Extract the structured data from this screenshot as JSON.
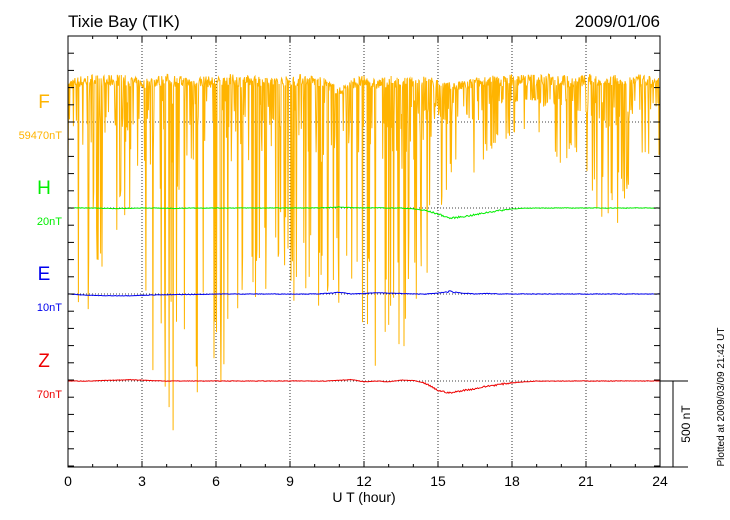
{
  "chart_data": {
    "type": "line",
    "title": "Tixie Bay (TIK)",
    "date": "2009/01/06",
    "xlabel": "U T (hour)",
    "xlim": [
      0,
      24
    ],
    "xticks": [
      "0",
      "3",
      "6",
      "9",
      "12",
      "15",
      "18",
      "21",
      "24"
    ],
    "scale_bar": "500 nT",
    "footer": "Plotted at 2009/03/09 21:42 UT",
    "x_step_hours": 0.5,
    "series": [
      {
        "name": "F",
        "baseline_label": "59470nT",
        "color": "#ffb400",
        "noisy": true,
        "upper": [
          250,
          270,
          280,
          270,
          280,
          270,
          250,
          270,
          280,
          270,
          260,
          270,
          260,
          280,
          270,
          270,
          280,
          260,
          270,
          280,
          270,
          250,
          200,
          260,
          270,
          250,
          270,
          260,
          260,
          270,
          250,
          230,
          240,
          260,
          270,
          270,
          280,
          280,
          280,
          280,
          280,
          260,
          280,
          270,
          280,
          270,
          280,
          270,
          260
        ],
        "lower": [
          -300,
          -1900,
          -800,
          -900,
          -700,
          -1000,
          -1700,
          -1800,
          -1900,
          -2000,
          -1900,
          -1500,
          -1800,
          -1400,
          -1300,
          -1200,
          -1000,
          -1000,
          -1100,
          -1200,
          -1200,
          -1300,
          -1100,
          -1000,
          -1300,
          -1600,
          -1200,
          -1400,
          -1200,
          -1000,
          -600,
          -400,
          -300,
          -500,
          -200,
          -100,
          -100,
          -50,
          -50,
          -300,
          -300,
          -200,
          -400,
          -600,
          -700,
          -500,
          -300,
          -200,
          -200
        ]
      },
      {
        "name": "H",
        "baseline_label": "20nT",
        "color": "#00ee00",
        "values": [
          0,
          0,
          0,
          -2,
          -3,
          -2,
          0,
          0,
          -2,
          -2,
          0,
          0,
          0,
          0,
          0,
          0,
          0,
          0,
          0,
          0,
          0,
          2,
          6,
          2,
          0,
          2,
          0,
          0,
          -5,
          -15,
          -35,
          -60,
          -50,
          -40,
          -25,
          -15,
          -5,
          -2,
          0,
          0,
          0,
          0,
          0,
          0,
          0,
          0,
          0,
          0,
          0
        ]
      },
      {
        "name": "E",
        "baseline_label": "10nT",
        "color": "#0000ee",
        "values": [
          0,
          -5,
          -8,
          -10,
          -10,
          -10,
          -8,
          -5,
          -5,
          -3,
          -3,
          -2,
          0,
          0,
          0,
          0,
          0,
          0,
          0,
          0,
          0,
          3,
          10,
          0,
          3,
          8,
          5,
          3,
          0,
          0,
          5,
          15,
          5,
          0,
          3,
          0,
          0,
          0,
          0,
          0,
          0,
          0,
          0,
          0,
          0,
          0,
          0,
          0,
          0
        ]
      },
      {
        "name": "Z",
        "baseline_label": "70nT",
        "color": "#ee0000",
        "values": [
          0,
          0,
          0,
          3,
          5,
          8,
          5,
          2,
          0,
          0,
          0,
          0,
          0,
          0,
          0,
          0,
          0,
          0,
          0,
          0,
          0,
          0,
          5,
          8,
          -5,
          0,
          -5,
          5,
          3,
          -15,
          -55,
          -70,
          -55,
          -45,
          -30,
          -20,
          -10,
          -5,
          0,
          0,
          0,
          0,
          0,
          0,
          0,
          0,
          0,
          0,
          0
        ]
      }
    ]
  }
}
